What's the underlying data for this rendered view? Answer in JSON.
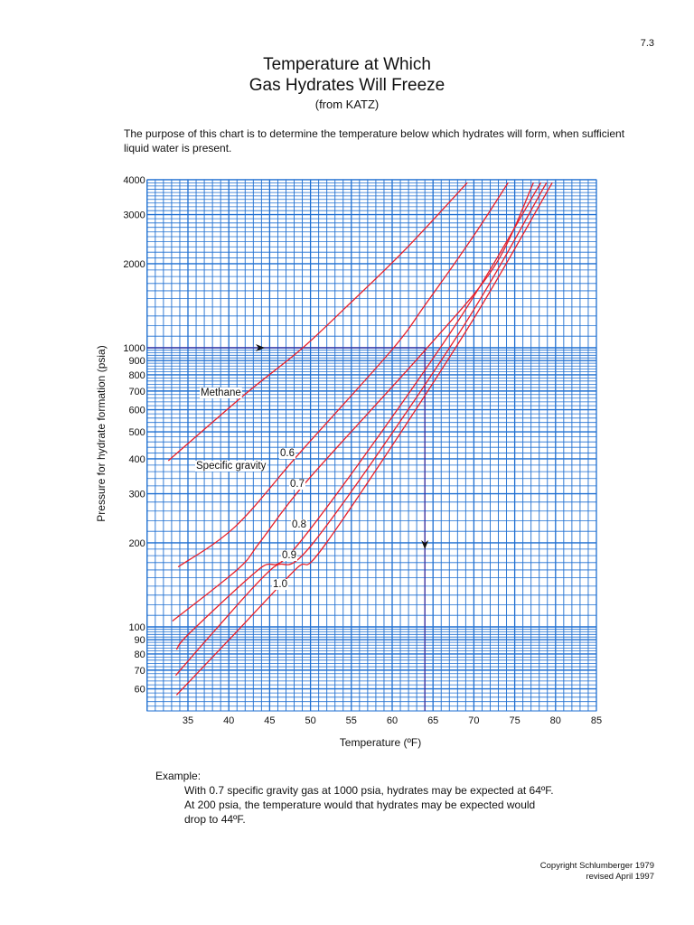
{
  "page_number": "7.3",
  "title_line1": "Temperature at Which",
  "title_line2": "Gas Hydrates Will Freeze",
  "source": "(from KATZ)",
  "purpose": "The purpose of this chart is to determine the temperature below which hydrates will form, when sufficient liquid water is present.",
  "example": {
    "heading": "Example:",
    "lines": [
      "With 0.7 specific gravity gas at 1000 psia, hydrates may be expected at 64ºF.",
      "At 200 psia, the temperature would that hydrates may be expected would",
      "drop to 44ºF."
    ]
  },
  "copyright": [
    "Copyright Schlumberger 1979",
    "revised April 1997"
  ],
  "colors": {
    "grid": "#1f6fd1",
    "curves": "#e8202a",
    "example_lines": "#3a2a9c"
  },
  "chart_data": {
    "type": "line",
    "xlabel": "Temperature (ºF)",
    "ylabel": "Pressure for hydrate formation (psia)",
    "xlim": [
      30,
      85
    ],
    "ylim": [
      50,
      4000
    ],
    "yscale": "log",
    "grid": true,
    "x_ticks": [
      "35",
      "40",
      "45",
      "50",
      "55",
      "60",
      "65",
      "70",
      "75",
      "80",
      "85"
    ],
    "y_ticks": [
      "4000",
      "3000",
      "2000",
      "1000",
      "900",
      "800",
      "700",
      "600",
      "500",
      "400",
      "300",
      "200",
      "100",
      "90",
      "80",
      "70",
      "60"
    ],
    "annotations": {
      "methane_label": "Methane",
      "sg_label": "Specific gravity"
    },
    "series": [
      {
        "name": "Methane",
        "points": [
          [
            32.6,
            394
          ],
          [
            41.9,
            678
          ],
          [
            48.8,
            985
          ],
          [
            54,
            1367
          ],
          [
            61.4,
            2218
          ],
          [
            69.2,
            3906
          ]
        ]
      },
      {
        "name": "0.6",
        "points": [
          [
            33.8,
            164
          ],
          [
            40.8,
            229
          ],
          [
            48.8,
            424
          ],
          [
            59.9,
            978
          ],
          [
            64,
            1420
          ],
          [
            69.9,
            2500
          ],
          [
            74.2,
            3906
          ]
        ]
      },
      {
        "name": "0.7",
        "points": [
          [
            33.1,
            105
          ],
          [
            41.1,
            161
          ],
          [
            43.8,
            201
          ],
          [
            49.6,
            334
          ],
          [
            64,
            978
          ],
          [
            72.5,
            1955
          ],
          [
            77.3,
            3906
          ]
        ]
      },
      {
        "name": "0.8",
        "points": [
          [
            33.6,
            83
          ],
          [
            35.2,
            95
          ],
          [
            43.7,
            161
          ],
          [
            48.7,
            201
          ],
          [
            67,
            1118
          ],
          [
            78.2,
            3906
          ]
        ]
      },
      {
        "name": "0.9",
        "points": [
          [
            33.5,
            67
          ],
          [
            38,
            95
          ],
          [
            45.2,
            161
          ],
          [
            50.4,
            201
          ],
          [
            68.1,
            1118
          ],
          [
            78.9,
            3906
          ]
        ]
      },
      {
        "name": "1.0",
        "points": [
          [
            33.6,
            57
          ],
          [
            40.8,
            95
          ],
          [
            48.2,
            161
          ],
          [
            52,
            201
          ],
          [
            68.8,
            1118
          ],
          [
            79.6,
            3906
          ]
        ]
      }
    ],
    "example_path": {
      "pressure": 1000,
      "temperature": 64
    }
  }
}
